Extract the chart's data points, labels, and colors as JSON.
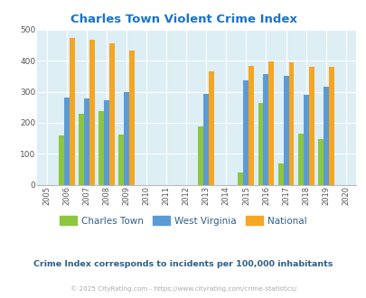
{
  "title": "Charles Town Violent Crime Index",
  "title_color": "#1874cd",
  "subtitle": "Crime Index corresponds to incidents per 100,000 inhabitants",
  "subtitle_color": "#2e5f8a",
  "copyright": "© 2025 CityRating.com - https://www.cityrating.com/crime-statistics/",
  "copyright_color": "#aaaaaa",
  "years": [
    2006,
    2007,
    2008,
    2009,
    2013,
    2015,
    2016,
    2017,
    2018,
    2019
  ],
  "charles_town": [
    160,
    228,
    238,
    162,
    187,
    40,
    264,
    68,
    165,
    148
  ],
  "west_virginia": [
    281,
    279,
    274,
    299,
    292,
    337,
    357,
    351,
    291,
    315
  ],
  "national": [
    473,
    468,
    456,
    432,
    367,
    384,
    399,
    394,
    381,
    381
  ],
  "charles_town_color": "#8dc63f",
  "west_virginia_color": "#5b9bd5",
  "national_color": "#f5a623",
  "bg_color": "#ddeef5",
  "ylim": [
    0,
    500
  ],
  "yticks": [
    0,
    100,
    200,
    300,
    400,
    500
  ],
  "xlim": [
    2004.5,
    2020.5
  ],
  "xticks": [
    2005,
    2006,
    2007,
    2008,
    2009,
    2010,
    2011,
    2012,
    2013,
    2014,
    2015,
    2016,
    2017,
    2018,
    2019,
    2020
  ],
  "bar_width": 0.27,
  "legend_labels": [
    "Charles Town",
    "West Virginia",
    "National"
  ]
}
